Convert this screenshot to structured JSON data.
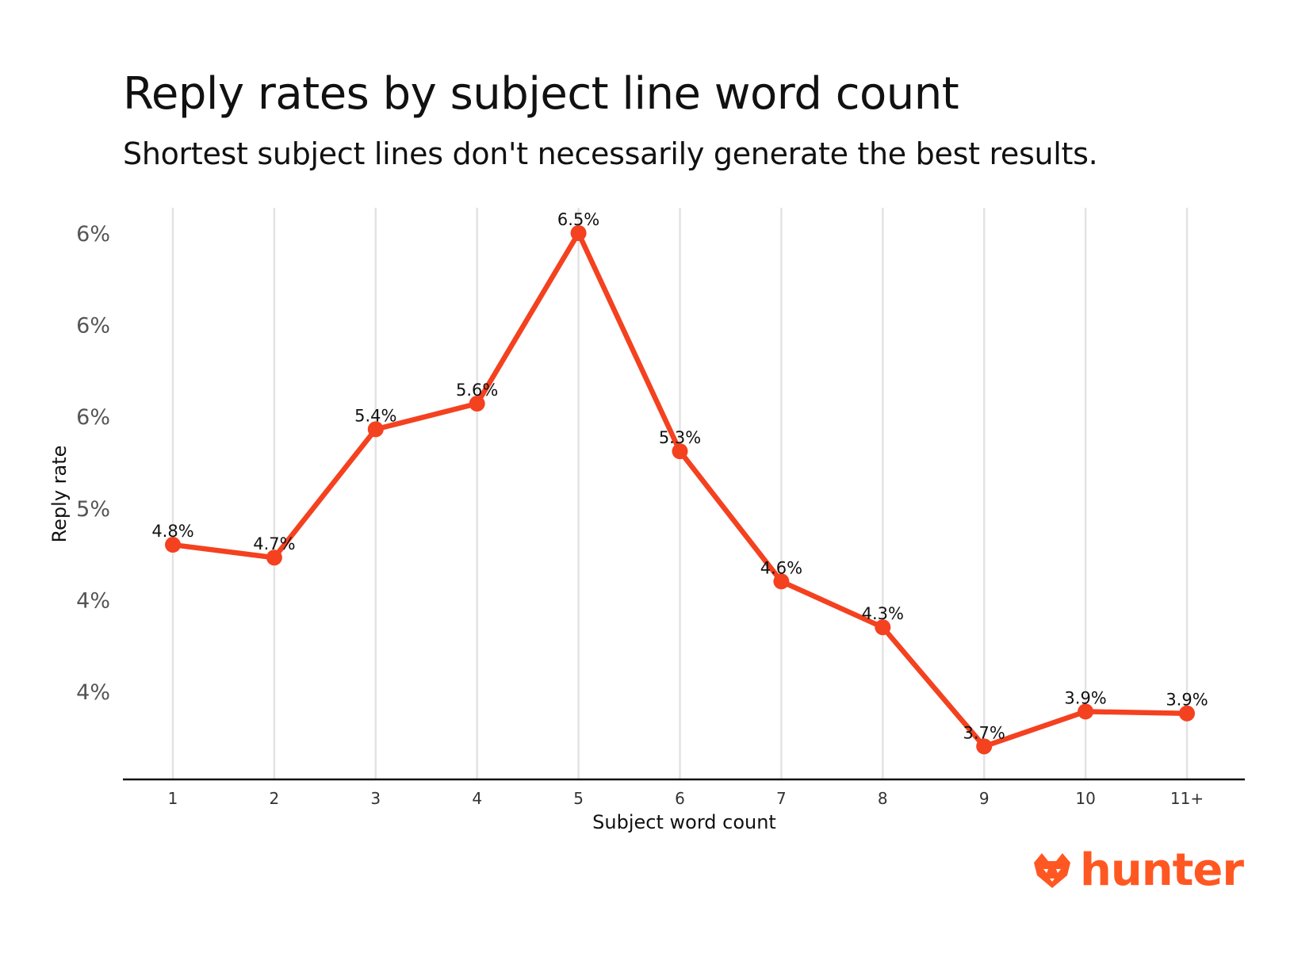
{
  "title": "Reply rates by subject line word count",
  "subtitle": "Shortest subject lines don't necessarily generate the best results.",
  "brand": {
    "name": "hunter",
    "color": "#ff5722",
    "icon": "fox-head-icon"
  },
  "chart_data": {
    "type": "line",
    "xlabel": "Subject word count",
    "ylabel": "Reply rate",
    "categories": [
      "1",
      "2",
      "3",
      "4",
      "5",
      "6",
      "7",
      "8",
      "9",
      "10",
      "11+"
    ],
    "series": [
      {
        "values": [
          4.8,
          4.73,
          5.43,
          5.57,
          6.5,
          5.31,
          4.6,
          4.35,
          3.7,
          3.89,
          3.88
        ],
        "labels": [
          "4.8%",
          "4.7%",
          "5.4%",
          "5.6%",
          "6.5%",
          "5.3%",
          "4.6%",
          "4.3%",
          "3.7%",
          "3.9%",
          "3.9%"
        ],
        "color": "#f4411f"
      }
    ],
    "yticks": [
      {
        "value": 4.0,
        "label": "4%"
      },
      {
        "value": 4.5,
        "label": "4%"
      },
      {
        "value": 5.0,
        "label": "5%"
      },
      {
        "value": 5.5,
        "label": "6%"
      },
      {
        "value": 6.0,
        "label": "6%"
      },
      {
        "value": 6.5,
        "label": "6%"
      }
    ],
    "ylim": [
      3.43,
      6.5
    ],
    "grid": "vertical",
    "legend": "none"
  }
}
